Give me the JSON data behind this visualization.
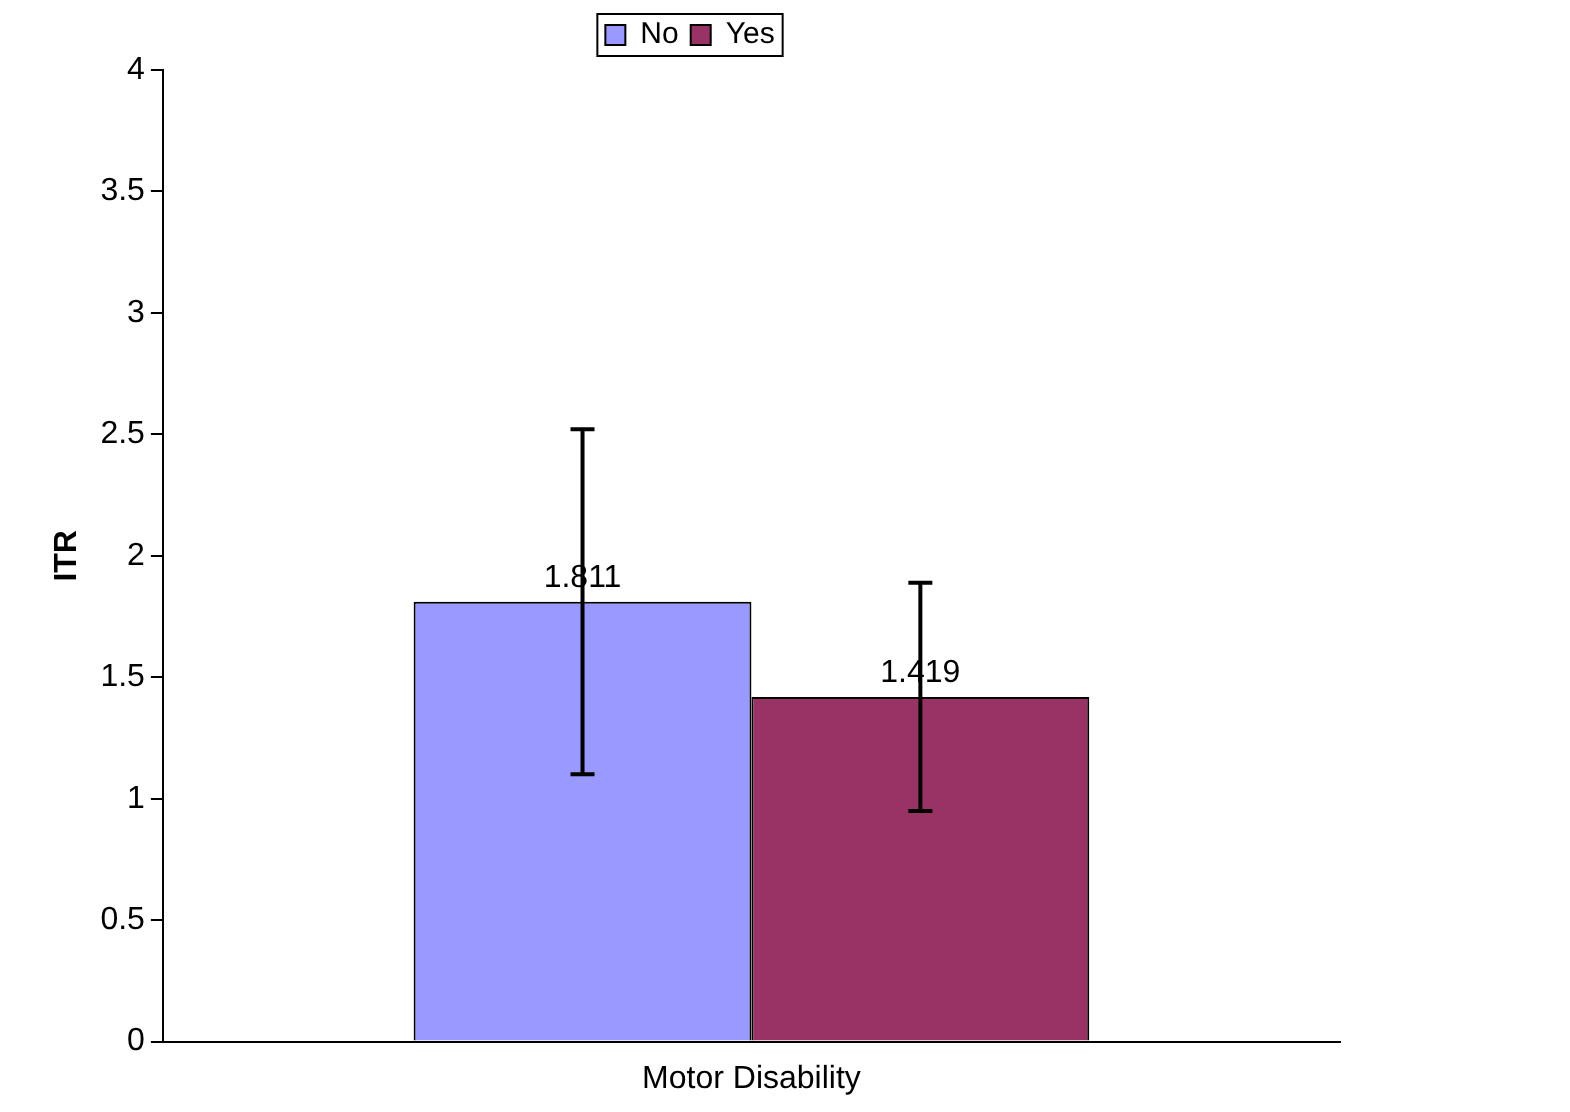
{
  "chart_data": {
    "type": "bar",
    "categories": [
      "Motor Disability"
    ],
    "series": [
      {
        "name": "No",
        "color": "#9999ff",
        "values": [
          1.811
        ],
        "errors": [
          0.71
        ]
      },
      {
        "name": "Yes",
        "color": "#993366",
        "values": [
          1.419
        ],
        "errors": [
          0.47
        ]
      }
    ],
    "ylabel": "ITR",
    "ylim": [
      0,
      4
    ],
    "yticks": [
      0,
      0.5,
      1,
      1.5,
      2,
      2.5,
      3,
      3.5,
      4
    ],
    "grid": false,
    "legend": "top",
    "data_labels": true
  }
}
